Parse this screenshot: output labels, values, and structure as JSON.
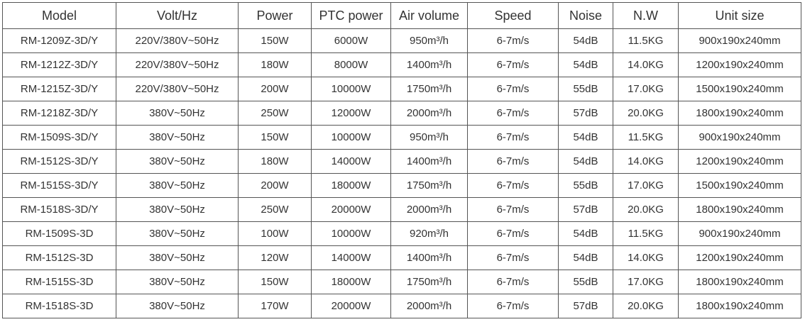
{
  "table": {
    "header": [
      "Model",
      "Volt/Hz",
      "Power",
      "PTC power",
      "Air volume",
      "Speed",
      "Noise",
      "N.W",
      "Unit size"
    ],
    "rows": [
      [
        "RM-1209Z-3D/Y",
        "220V/380V~50Hz",
        "150W",
        "6000W",
        "950m³/h",
        "6-7m/s",
        "54dB",
        "11.5KG",
        "900x190x240mm"
      ],
      [
        "RM-1212Z-3D/Y",
        "220V/380V~50Hz",
        "180W",
        "8000W",
        "1400m³/h",
        "6-7m/s",
        "54dB",
        "14.0KG",
        "1200x190x240mm"
      ],
      [
        "RM-1215Z-3D/Y",
        "220V/380V~50Hz",
        "200W",
        "10000W",
        "1750m³/h",
        "6-7m/s",
        "55dB",
        "17.0KG",
        "1500x190x240mm"
      ],
      [
        "RM-1218Z-3D/Y",
        "380V~50Hz",
        "250W",
        "12000W",
        "2000m³/h",
        "6-7m/s",
        "57dB",
        "20.0KG",
        "1800x190x240mm"
      ],
      [
        "RM-1509S-3D/Y",
        "380V~50Hz",
        "150W",
        "10000W",
        "950m³/h",
        "6-7m/s",
        "54dB",
        "11.5KG",
        "900x190x240mm"
      ],
      [
        "RM-1512S-3D/Y",
        "380V~50Hz",
        "180W",
        "14000W",
        "1400m³/h",
        "6-7m/s",
        "54dB",
        "14.0KG",
        "1200x190x240mm"
      ],
      [
        "RM-1515S-3D/Y",
        "380V~50Hz",
        "200W",
        "18000W",
        "1750m³/h",
        "6-7m/s",
        "55dB",
        "17.0KG",
        "1500x190x240mm"
      ],
      [
        "RM-1518S-3D/Y",
        "380V~50Hz",
        "250W",
        "20000W",
        "2000m³/h",
        "6-7m/s",
        "57dB",
        "20.0KG",
        "1800x190x240mm"
      ],
      [
        "RM-1509S-3D",
        "380V~50Hz",
        "100W",
        "10000W",
        "920m³/h",
        "6-7m/s",
        "54dB",
        "11.5KG",
        "900x190x240mm"
      ],
      [
        "RM-1512S-3D",
        "380V~50Hz",
        "120W",
        "14000W",
        "1400m³/h",
        "6-7m/s",
        "54dB",
        "14.0KG",
        "1200x190x240mm"
      ],
      [
        "RM-1515S-3D",
        "380V~50Hz",
        "150W",
        "18000W",
        "1750m³/h",
        "6-7m/s",
        "55dB",
        "17.0KG",
        "1800x190x240mm"
      ],
      [
        "RM-1518S-3D",
        "380V~50Hz",
        "170W",
        "20000W",
        "2000m³/h",
        "6-7m/s",
        "57dB",
        "20.0KG",
        "1800x190x240mm"
      ]
    ]
  }
}
